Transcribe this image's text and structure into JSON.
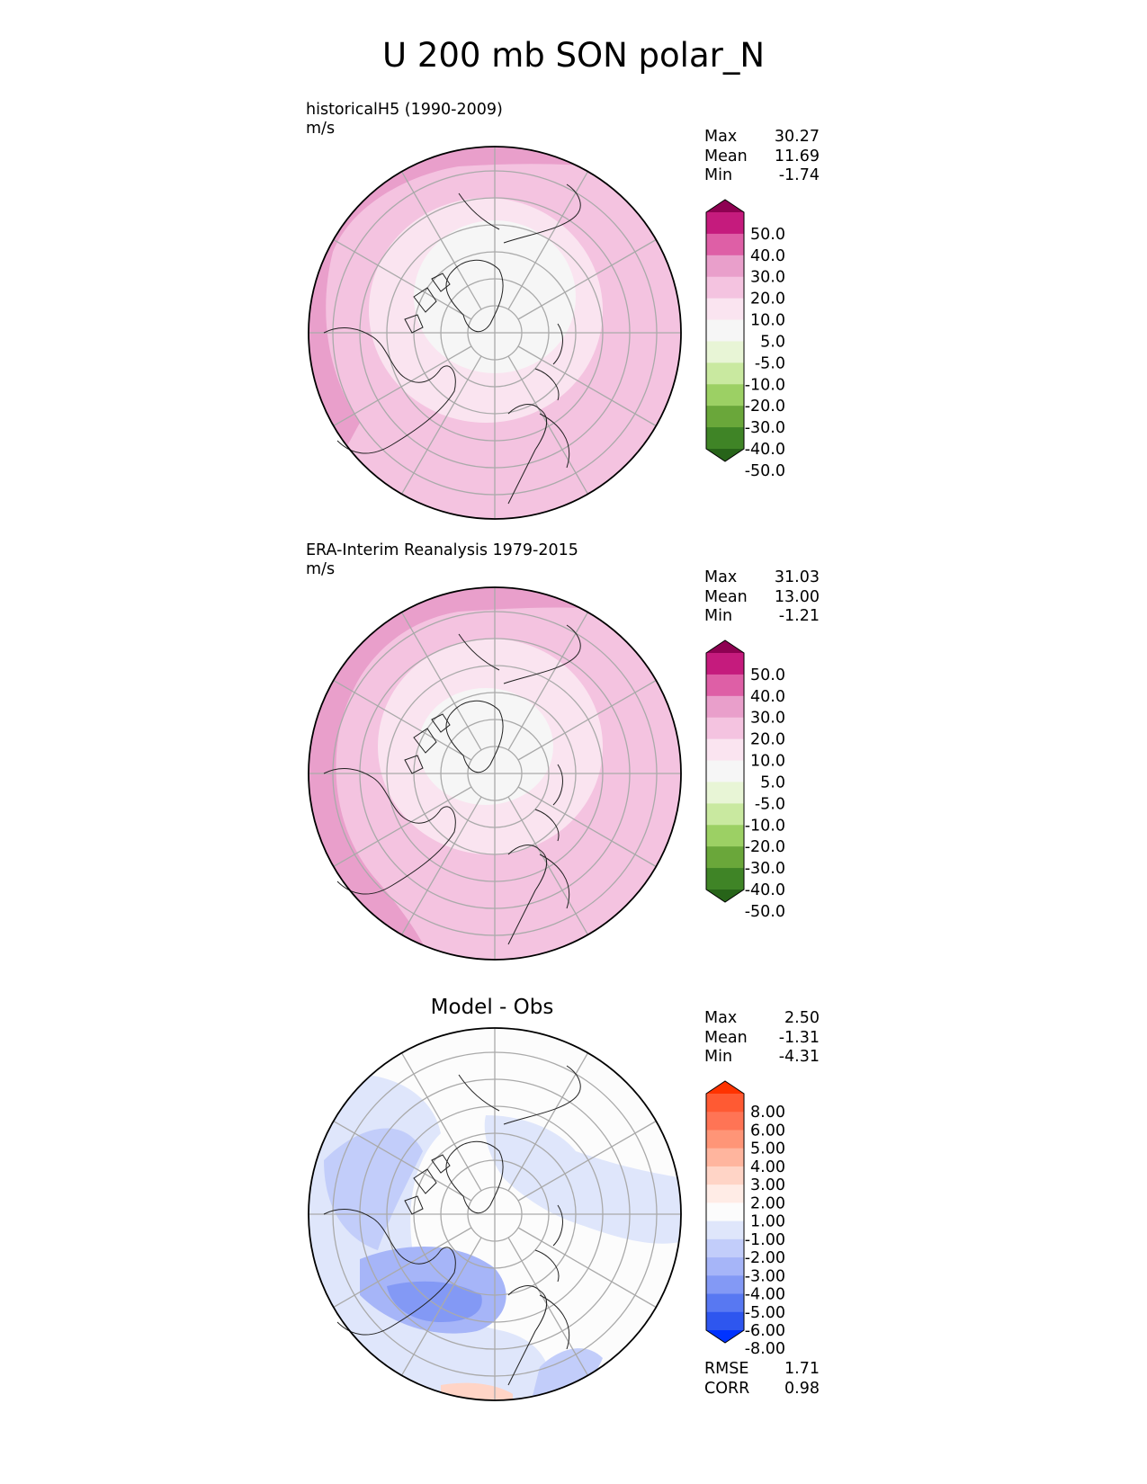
{
  "figure": {
    "title": "U 200 mb SON polar_N"
  },
  "panels": [
    {
      "id": "model",
      "subtitle": "historicalH5 (1990-2009)",
      "units": "m/s",
      "title": "",
      "stats": [
        {
          "label": "Max",
          "value": "30.27"
        },
        {
          "label": "Mean",
          "value": "11.69"
        },
        {
          "label": "Min",
          "value": "-1.74"
        }
      ],
      "colorbar": {
        "labels": [
          "50.0",
          "40.0",
          "30.0",
          "20.0",
          "10.0",
          "5.0",
          "-5.0",
          "-10.0",
          "-20.0",
          "-30.0",
          "-40.0",
          "-50.0"
        ],
        "colors": [
          "#8e0152",
          "#c51b7d",
          "#de5fa6",
          "#e99fcb",
          "#f4c3e0",
          "#fae4f0",
          "#f6f6f6",
          "#e8f5d6",
          "#c9e9a0",
          "#9cd064",
          "#6aa73a",
          "#3f8426",
          "#276419"
        ]
      },
      "footer_stats": []
    },
    {
      "id": "obs",
      "subtitle": "ERA-Interim Reanalysis 1979-2015",
      "units": "m/s",
      "title": "",
      "stats": [
        {
          "label": "Max",
          "value": "31.03"
        },
        {
          "label": "Mean",
          "value": "13.00"
        },
        {
          "label": "Min",
          "value": "-1.21"
        }
      ],
      "colorbar": {
        "labels": [
          "50.0",
          "40.0",
          "30.0",
          "20.0",
          "10.0",
          "5.0",
          "-5.0",
          "-10.0",
          "-20.0",
          "-30.0",
          "-40.0",
          "-50.0"
        ],
        "colors": [
          "#8e0152",
          "#c51b7d",
          "#de5fa6",
          "#e99fcb",
          "#f4c3e0",
          "#fae4f0",
          "#f6f6f6",
          "#e8f5d6",
          "#c9e9a0",
          "#9cd064",
          "#6aa73a",
          "#3f8426",
          "#276419"
        ]
      },
      "footer_stats": []
    },
    {
      "id": "diff",
      "subtitle": "",
      "units": "",
      "title": "Model - Obs",
      "stats": [
        {
          "label": "Max",
          "value": "2.50"
        },
        {
          "label": "Mean",
          "value": "-1.31"
        },
        {
          "label": "Min",
          "value": "-4.31"
        }
      ],
      "colorbar": {
        "labels": [
          "8.00",
          "6.00",
          "5.00",
          "4.00",
          "3.00",
          "2.00",
          "1.00",
          "-1.00",
          "-2.00",
          "-3.00",
          "-4.00",
          "-5.00",
          "-6.00",
          "-8.00"
        ],
        "colors": [
          "#ff3300",
          "#ff5a33",
          "#ff7455",
          "#ff9577",
          "#ffb59e",
          "#ffd4c6",
          "#ffece6",
          "#fcfcfc",
          "#dfe6fb",
          "#c2cdfa",
          "#a6b5f8",
          "#8399f5",
          "#5878f2",
          "#2e56ef",
          "#0033ff"
        ]
      },
      "footer_stats": [
        {
          "label": "RMSE",
          "value": "1.71"
        },
        {
          "label": "CORR",
          "value": "0.98"
        }
      ]
    }
  ],
  "chart_data": [
    {
      "type": "heatmap",
      "projection": "north-polar-stereographic",
      "title": "historicalH5 (1990-2009)",
      "units": "m/s",
      "variable": "U 200 mb SON",
      "max": 30.27,
      "mean": 11.69,
      "min": -1.74,
      "levels": [
        -50,
        -40,
        -30,
        -20,
        -10,
        -5,
        5,
        10,
        20,
        30,
        40,
        50
      ]
    },
    {
      "type": "heatmap",
      "projection": "north-polar-stereographic",
      "title": "ERA-Interim Reanalysis 1979-2015",
      "units": "m/s",
      "variable": "U 200 mb SON",
      "max": 31.03,
      "mean": 13.0,
      "min": -1.21,
      "levels": [
        -50,
        -40,
        -30,
        -20,
        -10,
        -5,
        5,
        10,
        20,
        30,
        40,
        50
      ]
    },
    {
      "type": "heatmap",
      "projection": "north-polar-stereographic",
      "title": "Model - Obs",
      "variable": "U 200 mb SON",
      "max": 2.5,
      "mean": -1.31,
      "min": -4.31,
      "rmse": 1.71,
      "corr": 0.98,
      "levels": [
        -8,
        -6,
        -5,
        -4,
        -3,
        -2,
        -1,
        1,
        2,
        3,
        4,
        5,
        6,
        8
      ]
    }
  ]
}
